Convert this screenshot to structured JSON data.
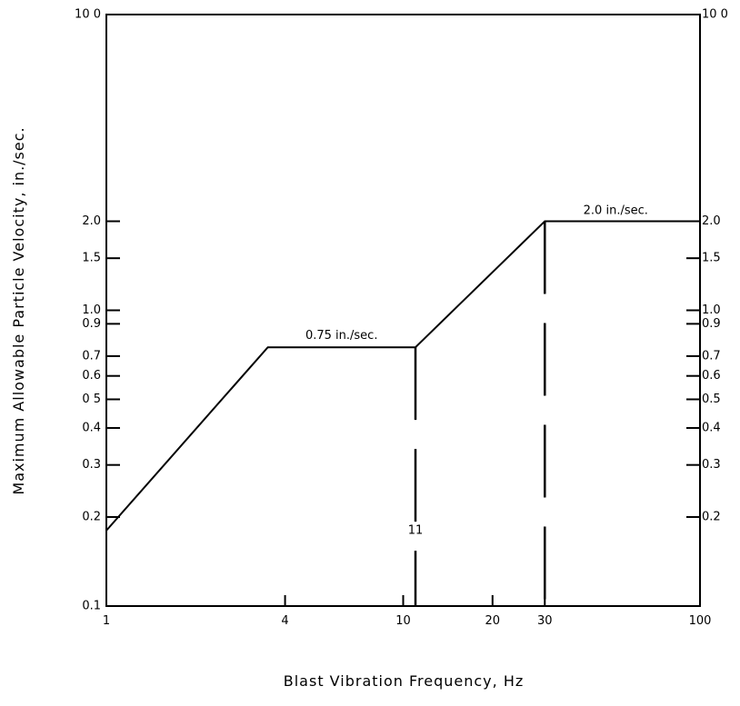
{
  "chart_data": {
    "type": "line",
    "xscale": "log",
    "yscale": "log",
    "xlim": [
      1,
      100
    ],
    "ylim": [
      0.1,
      10
    ],
    "xlabel": "Blast Vibration Frequency, Hz",
    "ylabel": "Maximum Allowable Particle Velocity, in./sec.",
    "x_ticks": [
      {
        "value": 1,
        "label": "1"
      },
      {
        "value": 4,
        "label": "4"
      },
      {
        "value": 10,
        "label": "10"
      },
      {
        "value": 20,
        "label": "20"
      },
      {
        "value": 30,
        "label": "30"
      },
      {
        "value": 100,
        "label": "100"
      }
    ],
    "y_ticks_left": [
      {
        "value": 0.1,
        "label": "0.1"
      },
      {
        "value": 0.2,
        "label": "0.2"
      },
      {
        "value": 0.3,
        "label": "0.3"
      },
      {
        "value": 0.4,
        "label": "0.4"
      },
      {
        "value": 0.5,
        "label": "0 5"
      },
      {
        "value": 0.6,
        "label": "0.6"
      },
      {
        "value": 0.7,
        "label": "0.7"
      },
      {
        "value": 0.9,
        "label": "0.9"
      },
      {
        "value": 1.0,
        "label": "1.0"
      },
      {
        "value": 1.5,
        "label": "1.5"
      },
      {
        "value": 2.0,
        "label": "2.0"
      },
      {
        "value": 10,
        "label": "10 0"
      }
    ],
    "y_ticks_right": [
      {
        "value": 0.2,
        "label": "0.2"
      },
      {
        "value": 0.3,
        "label": "0.3"
      },
      {
        "value": 0.4,
        "label": "0.4"
      },
      {
        "value": 0.5,
        "label": "0.5"
      },
      {
        "value": 0.6,
        "label": "0.6"
      },
      {
        "value": 0.7,
        "label": "0.7"
      },
      {
        "value": 0.9,
        "label": "0.9"
      },
      {
        "value": 1.0,
        "label": "1.0"
      },
      {
        "value": 1.5,
        "label": "1.5"
      },
      {
        "value": 2.0,
        "label": "2.0"
      },
      {
        "value": 10,
        "label": "10 0"
      }
    ],
    "series": [
      {
        "x": [
          1,
          3.5,
          11,
          30,
          100
        ],
        "y": [
          0.18,
          0.75,
          0.75,
          2.0,
          2.0
        ]
      }
    ],
    "reference_lines": [
      {
        "x": 11,
        "style": "dashed",
        "label": "11"
      },
      {
        "x": 30,
        "style": "dashed"
      }
    ],
    "annotations": [
      {
        "text": "0.75 in./sec.",
        "x": 6.2,
        "y": 0.8
      },
      {
        "text": "2.0 in./sec.",
        "x": 52,
        "y": 2.12
      }
    ],
    "grid": false,
    "legend": "none"
  }
}
